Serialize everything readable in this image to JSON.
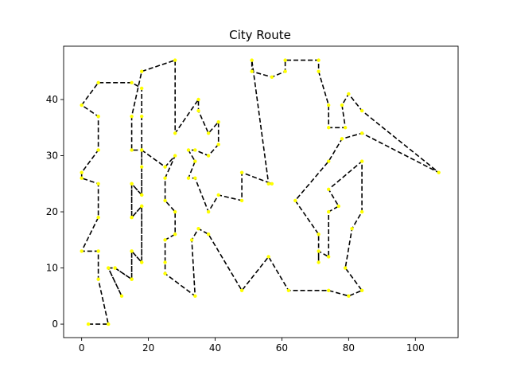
{
  "chart_data": {
    "type": "line",
    "title": "City Route",
    "xlabel": "",
    "ylabel": "",
    "xlim": [
      -5.4,
      112.8
    ],
    "ylim": [
      -2.4,
      49.5
    ],
    "xticks": [
      0,
      20,
      40,
      60,
      80,
      100
    ],
    "yticks": [
      0,
      10,
      20,
      30,
      40
    ],
    "grid": false,
    "line_color": "#000000",
    "line_style": "dashed",
    "marker_color": "#ffff00",
    "route": [
      [
        2,
        0
      ],
      [
        8,
        0
      ],
      [
        5,
        8
      ],
      [
        5,
        13
      ],
      [
        0,
        13
      ],
      [
        5,
        19
      ],
      [
        5,
        25
      ],
      [
        0,
        26
      ],
      [
        0,
        27
      ],
      [
        5,
        31
      ],
      [
        5,
        37
      ],
      [
        0,
        39
      ],
      [
        5,
        43
      ],
      [
        15,
        43
      ],
      [
        18,
        42
      ],
      [
        18,
        37
      ],
      [
        18,
        28
      ],
      [
        18,
        23
      ],
      [
        15,
        25
      ],
      [
        15,
        19
      ],
      [
        18,
        21
      ],
      [
        18,
        11
      ],
      [
        15,
        13
      ],
      [
        15,
        8
      ],
      [
        10,
        10
      ],
      [
        8,
        10
      ],
      [
        12,
        5
      ],
      [
        8,
        10
      ],
      [
        10,
        10
      ],
      [
        15,
        8
      ],
      [
        15,
        13
      ],
      [
        18,
        11
      ],
      [
        18,
        21
      ],
      [
        15,
        19
      ],
      [
        15,
        25
      ],
      [
        18,
        23
      ],
      [
        18,
        31
      ],
      [
        25,
        28
      ],
      [
        28,
        30
      ],
      [
        25,
        26
      ],
      [
        25,
        22
      ],
      [
        28,
        20
      ],
      [
        28,
        16
      ],
      [
        25,
        15
      ],
      [
        25,
        11
      ],
      [
        25,
        9
      ],
      [
        34,
        5
      ],
      [
        33,
        15
      ],
      [
        35,
        17
      ],
      [
        38,
        16
      ],
      [
        48,
        6
      ],
      [
        56,
        12
      ],
      [
        62,
        6
      ],
      [
        74,
        6
      ],
      [
        80,
        5
      ],
      [
        84,
        6
      ],
      [
        79,
        10
      ],
      [
        81,
        17
      ],
      [
        84,
        20
      ],
      [
        84,
        29
      ],
      [
        74,
        24
      ],
      [
        77,
        21
      ],
      [
        74,
        20
      ],
      [
        74,
        12
      ],
      [
        71,
        13
      ],
      [
        71,
        11
      ],
      [
        71,
        16
      ],
      [
        64,
        22
      ],
      [
        74,
        29
      ],
      [
        78,
        33
      ],
      [
        84,
        34
      ],
      [
        107,
        27
      ],
      [
        84,
        38
      ],
      [
        80,
        41
      ],
      [
        78,
        39
      ],
      [
        79,
        35
      ],
      [
        74,
        35
      ],
      [
        74,
        39
      ],
      [
        71,
        45
      ],
      [
        71,
        47
      ],
      [
        61,
        47
      ],
      [
        61,
        45
      ],
      [
        57,
        44
      ],
      [
        51,
        45
      ],
      [
        51,
        47
      ],
      [
        56,
        25
      ],
      [
        57,
        25
      ],
      [
        48,
        27
      ],
      [
        48,
        22
      ],
      [
        41,
        23
      ],
      [
        38,
        20
      ],
      [
        34,
        26
      ],
      [
        32,
        26
      ],
      [
        34,
        29
      ],
      [
        32,
        31
      ],
      [
        34,
        31
      ],
      [
        38,
        30
      ],
      [
        41,
        32
      ],
      [
        41,
        36
      ],
      [
        38,
        34
      ],
      [
        35,
        38
      ],
      [
        35,
        40
      ],
      [
        28,
        34
      ],
      [
        28,
        47
      ],
      [
        18,
        45
      ],
      [
        15,
        37
      ],
      [
        15,
        31
      ],
      [
        18,
        31
      ]
    ]
  }
}
